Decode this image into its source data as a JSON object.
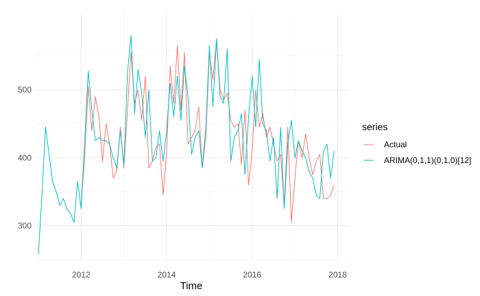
{
  "chart_data": {
    "type": "line",
    "title": "",
    "xlabel": "Time",
    "ylabel": "",
    "xlim": [
      2010.92,
      2018.25
    ],
    "ylim": [
      248,
      612
    ],
    "x_ticks": [
      2012,
      2014,
      2016,
      2018
    ],
    "x_tick_labels": [
      "2012",
      "2014",
      "2016",
      "2018"
    ],
    "y_ticks": [
      300,
      400,
      500
    ],
    "y_tick_labels": [
      "300",
      "400",
      "500"
    ],
    "grid": true,
    "legend": {
      "title": "series",
      "position": "right"
    },
    "series": [
      {
        "name": "Actual",
        "color": "#F8766D",
        "x": [
          2012.0,
          2012.083,
          2012.167,
          2012.25,
          2012.333,
          2012.417,
          2012.5,
          2012.583,
          2012.667,
          2012.75,
          2012.833,
          2012.917,
          2013.0,
          2013.083,
          2013.167,
          2013.25,
          2013.333,
          2013.417,
          2013.5,
          2013.583,
          2013.667,
          2013.75,
          2013.833,
          2013.917,
          2014.0,
          2014.083,
          2014.167,
          2014.25,
          2014.333,
          2014.417,
          2014.5,
          2014.583,
          2014.667,
          2014.75,
          2014.833,
          2014.917,
          2015.0,
          2015.083,
          2015.167,
          2015.25,
          2015.333,
          2015.417,
          2015.5,
          2015.583,
          2015.667,
          2015.75,
          2015.833,
          2015.917,
          2016.0,
          2016.083,
          2016.167,
          2016.25,
          2016.333,
          2016.417,
          2016.5,
          2016.583,
          2016.667,
          2016.75,
          2016.833,
          2016.917,
          2017.0,
          2017.083,
          2017.167,
          2017.25,
          2017.333,
          2017.417,
          2017.5,
          2017.583,
          2017.667,
          2017.75,
          2017.833,
          2017.917
        ],
        "values": [
          330,
          400,
          505,
          440,
          490,
          460,
          395,
          450,
          420,
          370,
          380,
          445,
          385,
          470,
          555,
          480,
          500,
          455,
          520,
          385,
          395,
          415,
          420,
          345,
          410,
          535,
          480,
          565,
          470,
          555,
          420,
          430,
          440,
          475,
          385,
          430,
          555,
          515,
          575,
          500,
          485,
          495,
          455,
          445,
          450,
          390,
          470,
          360,
          410,
          500,
          445,
          465,
          430,
          445,
          420,
          395,
          405,
          330,
          445,
          305,
          370,
          425,
          400,
          435,
          400,
          375,
          395,
          405,
          340,
          340,
          345,
          360
        ]
      },
      {
        "name": "ARIMA(0,1,1)(0,1,0)[12]",
        "color": "#00BFC4",
        "x": [
          2011.0,
          2011.083,
          2011.167,
          2011.25,
          2011.333,
          2011.417,
          2011.5,
          2011.583,
          2011.667,
          2011.75,
          2011.833,
          2011.917,
          2012.0,
          2012.083,
          2012.167,
          2012.25,
          2012.333,
          2012.417,
          2012.5,
          2012.583,
          2012.667,
          2012.75,
          2012.833,
          2012.917,
          2013.0,
          2013.083,
          2013.167,
          2013.25,
          2013.333,
          2013.417,
          2013.5,
          2013.583,
          2013.667,
          2013.75,
          2013.833,
          2013.917,
          2014.0,
          2014.083,
          2014.167,
          2014.25,
          2014.333,
          2014.417,
          2014.5,
          2014.583,
          2014.667,
          2014.75,
          2014.833,
          2014.917,
          2015.0,
          2015.083,
          2015.167,
          2015.25,
          2015.333,
          2015.417,
          2015.5,
          2015.583,
          2015.667,
          2015.75,
          2015.833,
          2015.917,
          2016.0,
          2016.083,
          2016.167,
          2016.25,
          2016.333,
          2016.417,
          2016.5,
          2016.583,
          2016.667,
          2016.75,
          2016.833,
          2016.917,
          2017.0,
          2017.083,
          2017.167,
          2017.25,
          2017.333,
          2017.417,
          2017.5,
          2017.583,
          2017.667,
          2017.75,
          2017.833,
          2017.917
        ],
        "values": [
          258,
          345,
          445,
          405,
          365,
          350,
          330,
          340,
          325,
          318,
          305,
          365,
          325,
          425,
          528,
          470,
          425,
          430,
          425,
          425,
          420,
          400,
          385,
          440,
          390,
          525,
          580,
          465,
          530,
          495,
          430,
          500,
          395,
          400,
          440,
          395,
          440,
          510,
          460,
          520,
          455,
          535,
          490,
          405,
          430,
          440,
          385,
          445,
          565,
          475,
          575,
          490,
          480,
          560,
          395,
          430,
          440,
          465,
          375,
          460,
          520,
          445,
          545,
          450,
          440,
          395,
          430,
          340,
          445,
          325,
          420,
          455,
          400,
          425,
          410,
          400,
          380,
          370,
          345,
          340,
          410,
          420,
          370,
          410
        ]
      }
    ]
  }
}
